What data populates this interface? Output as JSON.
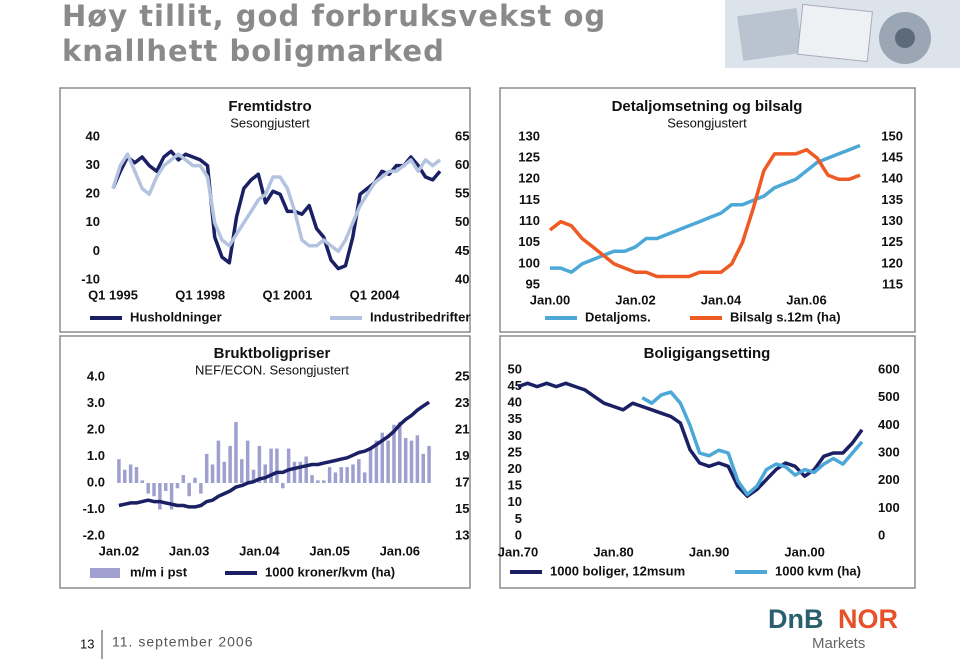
{
  "header": {
    "title": [
      "Høy tillit, god forbruksvekst og",
      "knallhett boligmarked"
    ]
  },
  "footer": {
    "page": 13,
    "date": "11. september 2006"
  },
  "logo": {
    "left": "DnB",
    "right": "NOR",
    "sub": "Markets"
  },
  "chart_data": [
    {
      "type": "line",
      "title": "Fremtidstro",
      "subtitle": "Sesongjustert",
      "categories": [
        "Q1 1995",
        null,
        null,
        null,
        null,
        null,
        null,
        null,
        null,
        null,
        null,
        null,
        "Q1 1998",
        null,
        null,
        null,
        null,
        null,
        null,
        null,
        null,
        null,
        null,
        null,
        "Q1 2001",
        null,
        null,
        null,
        null,
        null,
        null,
        null,
        null,
        null,
        null,
        null,
        "Q1 2004",
        null,
        null,
        null,
        null,
        null,
        null,
        null,
        null,
        null
      ],
      "ylim": [
        -10,
        40
      ],
      "yticks": [
        -10,
        0,
        10,
        20,
        30,
        40
      ],
      "y2lim": [
        40,
        65
      ],
      "y2ticks": [
        40,
        45,
        50,
        55,
        60,
        65
      ],
      "series": [
        {
          "name": "Husholdninger",
          "color": "#1b2065",
          "values": [
            22,
            28,
            33,
            31,
            33,
            30,
            28,
            33,
            35,
            32,
            34,
            33,
            32,
            30,
            5,
            -2,
            -4,
            12,
            22,
            25,
            27,
            17,
            21,
            20,
            14,
            14,
            13,
            16,
            8,
            5,
            -3,
            -6,
            -5,
            5,
            20,
            22,
            24,
            28,
            27,
            30,
            30,
            33,
            30,
            26,
            25,
            28
          ]
        },
        {
          "name": "Industribedrifter",
          "color": "#b4c4e0",
          "axis": "y2",
          "values": [
            56,
            60,
            62,
            59,
            56,
            55,
            58,
            60,
            61,
            62,
            61,
            60,
            60,
            58,
            50,
            47,
            46,
            48,
            50,
            52,
            54,
            55,
            58,
            58,
            56,
            52,
            47,
            46,
            46,
            47,
            46,
            45,
            47,
            50,
            53,
            55,
            57,
            58,
            59,
            59,
            60,
            61,
            59,
            61,
            60,
            61
          ]
        }
      ]
    },
    {
      "type": "line",
      "title": "Detaljomsetning og bilsalg",
      "subtitle": "Sesongjustert",
      "categories": [
        "Jan.00",
        null,
        null,
        null,
        null,
        null,
        null,
        null,
        "Jan.02",
        null,
        null,
        null,
        null,
        null,
        null,
        null,
        "Jan.04",
        null,
        null,
        null,
        null,
        null,
        null,
        null,
        "Jan.06",
        null,
        null,
        null,
        null,
        null
      ],
      "ylim": [
        95,
        130
      ],
      "yticks": [
        95,
        100,
        105,
        110,
        115,
        120,
        125,
        130
      ],
      "y2lim": [
        115,
        150
      ],
      "y2ticks": [
        115,
        120,
        125,
        130,
        135,
        140,
        145,
        150
      ],
      "series": [
        {
          "name": "Detaljoms.",
          "color": "#4ca8d6",
          "values": [
            99,
            99,
            98,
            100,
            101,
            102,
            103,
            103,
            104,
            106,
            106,
            107,
            108,
            109,
            110,
            111,
            112,
            114,
            114,
            115,
            116,
            118,
            119,
            120,
            122,
            124,
            125,
            126,
            127,
            128
          ]
        },
        {
          "name": "Bilsalg s.12m (ha)",
          "color": "#ee5a24",
          "axis": "y2",
          "values": [
            128,
            130,
            129,
            126,
            124,
            122,
            120,
            119,
            118,
            118,
            117,
            117,
            117,
            117,
            118,
            118,
            118,
            120,
            125,
            133,
            142,
            146,
            146,
            146,
            147,
            145,
            141,
            140,
            140,
            141
          ]
        }
      ]
    },
    {
      "type": "combo",
      "title": "Bruktboligpriser",
      "subtitle": "NEF/ECON. Sesongjustert",
      "categories": [
        "Jan.02",
        null,
        null,
        null,
        null,
        null,
        null,
        null,
        null,
        null,
        null,
        null,
        "Jan.03",
        null,
        null,
        null,
        null,
        null,
        null,
        null,
        null,
        null,
        null,
        null,
        "Jan.04",
        null,
        null,
        null,
        null,
        null,
        null,
        null,
        null,
        null,
        null,
        null,
        "Jan.05",
        null,
        null,
        null,
        null,
        null,
        null,
        null,
        null,
        null,
        null,
        null,
        "Jan.06",
        null,
        null,
        null,
        null,
        null
      ],
      "ylim": [
        -2,
        4
      ],
      "yticks": [
        {
          "value": -2,
          "label": "-2.0"
        },
        {
          "value": -1,
          "label": "-1.0"
        },
        {
          "value": 0,
          "label": "0.0"
        },
        {
          "value": 1,
          "label": "1.0"
        },
        {
          "value": 2,
          "label": "2.0"
        },
        {
          "value": 3,
          "label": "3.0"
        },
        {
          "value": 4,
          "label": "4.0"
        }
      ],
      "y2lim": [
        13,
        25
      ],
      "y2ticks": [
        13,
        15,
        17,
        19,
        21,
        23,
        25
      ],
      "series": [
        {
          "name": "m/m i pst",
          "type": "bar",
          "color": "#a0a0d0",
          "values": [
            0.9,
            0.5,
            0.7,
            0.6,
            0.1,
            -0.4,
            -0.5,
            -1.0,
            -0.3,
            -1.0,
            -0.2,
            0.3,
            -0.5,
            0.2,
            -0.4,
            1.1,
            0.7,
            1.6,
            0.8,
            1.4,
            2.3,
            0.9,
            1.6,
            0.5,
            1.4,
            0.7,
            1.3,
            1.3,
            -0.2,
            1.3,
            0.8,
            0.8,
            1.0,
            0.3,
            0.1,
            0.1,
            0.6,
            0.4,
            0.6,
            0.6,
            0.7,
            0.9,
            0.4,
            1.3,
            1.6,
            1.9,
            1.6,
            2.2,
            2.3,
            1.7,
            1.6,
            1.8,
            1.1,
            1.4
          ]
        },
        {
          "name": "1000 kroner/kvm (ha)",
          "type": "line",
          "axis": "y2",
          "color": "#1b2065",
          "values": [
            15.3,
            15.4,
            15.5,
            15.5,
            15.6,
            15.7,
            15.6,
            15.6,
            15.5,
            15.4,
            15.3,
            15.3,
            15.2,
            15.2,
            15.3,
            15.6,
            15.7,
            16.0,
            16.2,
            16.4,
            16.7,
            16.8,
            17.0,
            17.1,
            17.3,
            17.4,
            17.6,
            17.8,
            17.8,
            18.0,
            18.1,
            18.2,
            18.3,
            18.4,
            18.4,
            18.5,
            18.6,
            18.7,
            18.8,
            18.9,
            19.1,
            19.3,
            19.4,
            19.6,
            19.9,
            20.2,
            20.5,
            20.9,
            21.4,
            21.8,
            22.1,
            22.5,
            22.8,
            23.1
          ]
        }
      ]
    },
    {
      "type": "line",
      "title": "Boligigangsetting",
      "categories": [
        "Jan.70",
        null,
        null,
        null,
        null,
        null,
        null,
        null,
        null,
        null,
        "Jan.80",
        null,
        null,
        null,
        null,
        null,
        null,
        null,
        null,
        null,
        "Jan.90",
        null,
        null,
        null,
        null,
        null,
        null,
        null,
        null,
        null,
        "Jan.00",
        null,
        null,
        null,
        null,
        null,
        null
      ],
      "ylim": [
        0,
        50
      ],
      "yticks": [
        0,
        5,
        10,
        15,
        20,
        25,
        30,
        35,
        40,
        45,
        50
      ],
      "y2lim": [
        0,
        600
      ],
      "y2ticks": [
        0,
        100,
        200,
        300,
        400,
        500,
        600
      ],
      "series": [
        {
          "name": "1000 boliger, 12msum",
          "color": "#1b2065",
          "values": [
            45,
            46,
            45,
            46,
            45,
            46,
            45,
            44,
            42,
            40,
            39,
            38,
            40,
            39,
            38,
            37,
            36,
            34,
            26,
            22,
            21,
            22,
            21,
            15,
            12,
            14,
            17,
            20,
            22,
            21,
            18,
            20,
            24,
            25,
            25,
            28,
            32
          ]
        },
        {
          "name": "1000 kvm (ha)",
          "color": "#4ca8d6",
          "axis": "y2",
          "values": [
            null,
            null,
            null,
            null,
            null,
            null,
            null,
            null,
            null,
            null,
            null,
            null,
            null,
            500,
            480,
            510,
            520,
            480,
            400,
            300,
            290,
            310,
            300,
            200,
            150,
            180,
            240,
            260,
            250,
            220,
            240,
            230,
            260,
            280,
            260,
            300,
            340
          ]
        }
      ]
    }
  ]
}
